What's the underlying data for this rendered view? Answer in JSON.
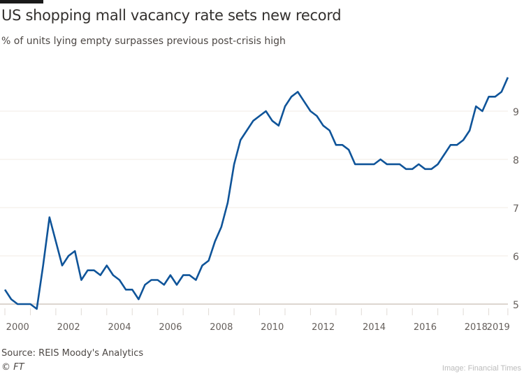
{
  "chart_data": {
    "type": "line",
    "title": "US shopping mall vacancy rate sets new record",
    "subtitle": "% of units lying empty surpasses previous post-crisis high",
    "x_start": 2000,
    "x_step_years": 0.25,
    "x_ticks": [
      "2000",
      "2002",
      "2004",
      "2006",
      "2008",
      "2010",
      "2012",
      "2014",
      "2016",
      "2018",
      "2019"
    ],
    "y_ticks": [
      5,
      6,
      7,
      8,
      9
    ],
    "ylim": [
      4.8,
      9.9
    ],
    "grid": true,
    "series": [
      {
        "color": "#0f5499",
        "values": [
          5.3,
          5.1,
          5.0,
          5.0,
          5.0,
          4.9,
          5.8,
          6.8,
          6.3,
          5.8,
          6.0,
          6.1,
          5.5,
          5.7,
          5.7,
          5.6,
          5.8,
          5.6,
          5.5,
          5.3,
          5.3,
          5.1,
          5.4,
          5.5,
          5.5,
          5.4,
          5.6,
          5.4,
          5.6,
          5.6,
          5.5,
          5.8,
          5.9,
          6.3,
          6.6,
          7.1,
          7.9,
          8.4,
          8.6,
          8.8,
          8.9,
          9.0,
          8.8,
          8.7,
          9.1,
          9.3,
          9.4,
          9.2,
          9.0,
          8.9,
          8.7,
          8.6,
          8.3,
          8.3,
          8.2,
          7.9,
          7.9,
          7.9,
          7.9,
          8.0,
          7.9,
          7.9,
          7.9,
          7.8,
          7.8,
          7.9,
          7.8,
          7.8,
          7.9,
          8.1,
          8.3,
          8.3,
          8.4,
          8.6,
          9.1,
          9.0,
          9.3,
          9.3,
          9.4,
          9.7
        ]
      }
    ]
  },
  "footer": {
    "source": "Source: REIS Moody's Analytics",
    "copyright": "© FT",
    "credit": "Image: Financial Times"
  }
}
